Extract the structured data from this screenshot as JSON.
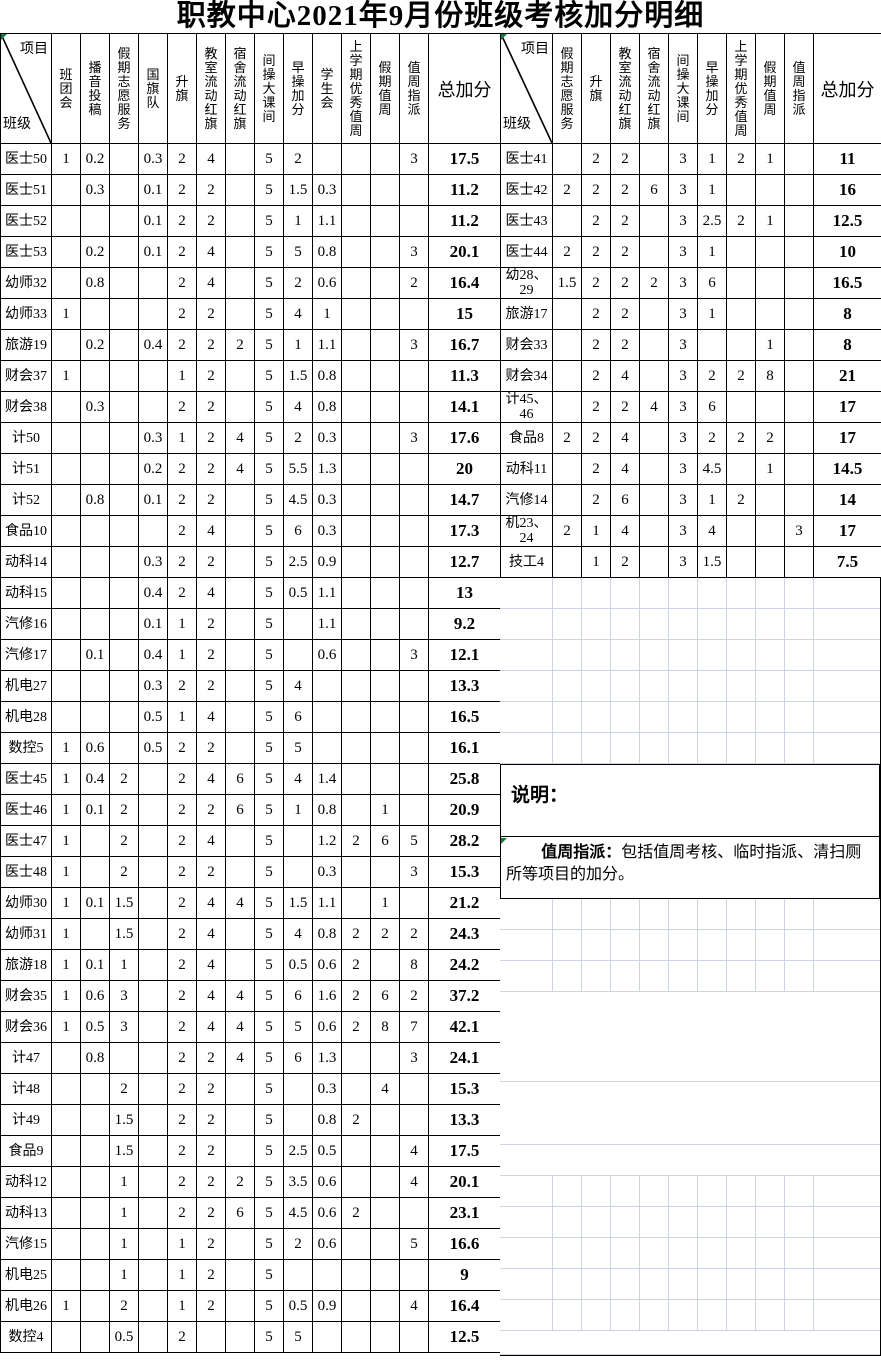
{
  "title": "职教中心2021年9月份班级考核加分明细",
  "notes": {
    "heading": "说明：",
    "term": "值周指派：",
    "text": "包括值周考核、临时指派、清扫厕所等项目的加分。"
  },
  "colors": {
    "border": "#000000",
    "gridline": "#ccd3e4",
    "marker_green": "#0f7b3a"
  },
  "left_table": {
    "corner": {
      "top": "项目",
      "bottom": "班级"
    },
    "columns": [
      "班团会",
      "播音投稿",
      "假期志愿服务",
      "国旗队",
      "升旗",
      "教室流动红旗",
      "宿舍流动红旗",
      "间操大课间",
      "早操加分",
      "学生会",
      "上学期优秀值周",
      "假期值周",
      "值周指派"
    ],
    "total_label": "总加分",
    "rows": [
      {
        "label": "医士50",
        "values": [
          "1",
          "0.2",
          "",
          "0.3",
          "2",
          "4",
          "",
          "5",
          "2",
          "",
          "",
          "",
          "3"
        ],
        "total": "17.5"
      },
      {
        "label": "医士51",
        "values": [
          "",
          "0.3",
          "",
          "0.1",
          "2",
          "2",
          "",
          "5",
          "1.5",
          "0.3",
          "",
          "",
          ""
        ],
        "total": "11.2"
      },
      {
        "label": "医士52",
        "values": [
          "",
          "",
          "",
          "0.1",
          "2",
          "2",
          "",
          "5",
          "1",
          "1.1",
          "",
          "",
          ""
        ],
        "total": "11.2"
      },
      {
        "label": "医士53",
        "values": [
          "",
          "0.2",
          "",
          "0.1",
          "2",
          "4",
          "",
          "5",
          "5",
          "0.8",
          "",
          "",
          "3"
        ],
        "total": "20.1"
      },
      {
        "label": "幼师32",
        "values": [
          "",
          "0.8",
          "",
          "",
          "2",
          "4",
          "",
          "5",
          "2",
          "0.6",
          "",
          "",
          "2"
        ],
        "total": "16.4"
      },
      {
        "label": "幼师33",
        "values": [
          "1",
          "",
          "",
          "",
          "2",
          "2",
          "",
          "5",
          "4",
          "1",
          "",
          "",
          ""
        ],
        "total": "15"
      },
      {
        "label": "旅游19",
        "values": [
          "",
          "0.2",
          "",
          "0.4",
          "2",
          "2",
          "2",
          "5",
          "1",
          "1.1",
          "",
          "",
          "3"
        ],
        "total": "16.7"
      },
      {
        "label": "财会37",
        "values": [
          "1",
          "",
          "",
          "",
          "1",
          "2",
          "",
          "5",
          "1.5",
          "0.8",
          "",
          "",
          ""
        ],
        "total": "11.3"
      },
      {
        "label": "财会38",
        "values": [
          "",
          "0.3",
          "",
          "",
          "2",
          "2",
          "",
          "5",
          "4",
          "0.8",
          "",
          "",
          ""
        ],
        "total": "14.1"
      },
      {
        "label": "计50",
        "values": [
          "",
          "",
          "",
          "0.3",
          "1",
          "2",
          "4",
          "5",
          "2",
          "0.3",
          "",
          "",
          "3"
        ],
        "total": "17.6"
      },
      {
        "label": "计51",
        "values": [
          "",
          "",
          "",
          "0.2",
          "2",
          "2",
          "4",
          "5",
          "5.5",
          "1.3",
          "",
          "",
          ""
        ],
        "total": "20"
      },
      {
        "label": "计52",
        "values": [
          "",
          "0.8",
          "",
          "0.1",
          "2",
          "2",
          "",
          "5",
          "4.5",
          "0.3",
          "",
          "",
          ""
        ],
        "total": "14.7"
      },
      {
        "label": "食品10",
        "values": [
          "",
          "",
          "",
          "",
          "2",
          "4",
          "",
          "5",
          "6",
          "0.3",
          "",
          "",
          ""
        ],
        "total": "17.3"
      },
      {
        "label": "动科14",
        "values": [
          "",
          "",
          "",
          "0.3",
          "2",
          "2",
          "",
          "5",
          "2.5",
          "0.9",
          "",
          "",
          ""
        ],
        "total": "12.7"
      },
      {
        "label": "动科15",
        "values": [
          "",
          "",
          "",
          "0.4",
          "2",
          "4",
          "",
          "5",
          "0.5",
          "1.1",
          "",
          "",
          ""
        ],
        "total": "13"
      },
      {
        "label": "汽修16",
        "values": [
          "",
          "",
          "",
          "0.1",
          "1",
          "2",
          "",
          "5",
          "",
          "1.1",
          "",
          "",
          ""
        ],
        "total": "9.2"
      },
      {
        "label": "汽修17",
        "values": [
          "",
          "0.1",
          "",
          "0.4",
          "1",
          "2",
          "",
          "5",
          "",
          "0.6",
          "",
          "",
          "3"
        ],
        "total": "12.1"
      },
      {
        "label": "机电27",
        "values": [
          "",
          "",
          "",
          "0.3",
          "2",
          "2",
          "",
          "5",
          "4",
          "",
          "",
          "",
          ""
        ],
        "total": "13.3"
      },
      {
        "label": "机电28",
        "values": [
          "",
          "",
          "",
          "0.5",
          "1",
          "4",
          "",
          "5",
          "6",
          "",
          "",
          "",
          ""
        ],
        "total": "16.5"
      },
      {
        "label": "数控5",
        "values": [
          "1",
          "0.6",
          "",
          "0.5",
          "2",
          "2",
          "",
          "5",
          "5",
          "",
          "",
          "",
          ""
        ],
        "total": "16.1"
      },
      {
        "label": "医士45",
        "values": [
          "1",
          "0.4",
          "2",
          "",
          "2",
          "4",
          "6",
          "5",
          "4",
          "1.4",
          "",
          "",
          ""
        ],
        "total": "25.8"
      },
      {
        "label": "医士46",
        "values": [
          "1",
          "0.1",
          "2",
          "",
          "2",
          "2",
          "6",
          "5",
          "1",
          "0.8",
          "",
          "1",
          ""
        ],
        "total": "20.9"
      },
      {
        "label": "医士47",
        "values": [
          "1",
          "",
          "2",
          "",
          "2",
          "4",
          "",
          "5",
          "",
          "1.2",
          "2",
          "6",
          "5"
        ],
        "total": "28.2"
      },
      {
        "label": "医士48",
        "values": [
          "1",
          "",
          "2",
          "",
          "2",
          "2",
          "",
          "5",
          "",
          "0.3",
          "",
          "",
          "3"
        ],
        "total": "15.3"
      },
      {
        "label": "幼师30",
        "values": [
          "1",
          "0.1",
          "1.5",
          "",
          "2",
          "4",
          "4",
          "5",
          "1.5",
          "1.1",
          "",
          "1",
          ""
        ],
        "total": "21.2"
      },
      {
        "label": "幼师31",
        "values": [
          "1",
          "",
          "1.5",
          "",
          "2",
          "4",
          "",
          "5",
          "4",
          "0.8",
          "2",
          "2",
          "2"
        ],
        "total": "24.3"
      },
      {
        "label": "旅游18",
        "values": [
          "1",
          "0.1",
          "1",
          "",
          "2",
          "4",
          "",
          "5",
          "0.5",
          "0.6",
          "2",
          "",
          "8"
        ],
        "total": "24.2"
      },
      {
        "label": "财会35",
        "values": [
          "1",
          "0.6",
          "3",
          "",
          "2",
          "4",
          "4",
          "5",
          "6",
          "1.6",
          "2",
          "6",
          "2"
        ],
        "total": "37.2"
      },
      {
        "label": "财会36",
        "values": [
          "1",
          "0.5",
          "3",
          "",
          "2",
          "4",
          "4",
          "5",
          "5",
          "0.6",
          "2",
          "8",
          "7"
        ],
        "total": "42.1"
      },
      {
        "label": "计47",
        "values": [
          "",
          "0.8",
          "",
          "",
          "2",
          "2",
          "4",
          "5",
          "6",
          "1.3",
          "",
          "",
          "3"
        ],
        "total": "24.1"
      },
      {
        "label": "计48",
        "values": [
          "",
          "",
          "2",
          "",
          "2",
          "2",
          "",
          "5",
          "",
          "0.3",
          "",
          "4",
          ""
        ],
        "total": "15.3"
      },
      {
        "label": "计49",
        "values": [
          "",
          "",
          "1.5",
          "",
          "2",
          "2",
          "",
          "5",
          "",
          "0.8",
          "2",
          "",
          ""
        ],
        "total": "13.3"
      },
      {
        "label": "食品9",
        "values": [
          "",
          "",
          "1.5",
          "",
          "2",
          "2",
          "",
          "5",
          "2.5",
          "0.5",
          "",
          "",
          "4"
        ],
        "total": "17.5"
      },
      {
        "label": "动科12",
        "values": [
          "",
          "",
          "1",
          "",
          "2",
          "2",
          "2",
          "5",
          "3.5",
          "0.6",
          "",
          "",
          "4"
        ],
        "total": "20.1"
      },
      {
        "label": "动科13",
        "values": [
          "",
          "",
          "1",
          "",
          "2",
          "2",
          "6",
          "5",
          "4.5",
          "0.6",
          "2",
          "",
          ""
        ],
        "total": "23.1"
      },
      {
        "label": "汽修15",
        "values": [
          "",
          "",
          "1",
          "",
          "1",
          "2",
          "",
          "5",
          "2",
          "0.6",
          "",
          "",
          "5"
        ],
        "total": "16.6"
      },
      {
        "label": "机电25",
        "values": [
          "",
          "",
          "1",
          "",
          "1",
          "2",
          "",
          "5",
          "",
          "",
          "",
          "",
          ""
        ],
        "total": "9"
      },
      {
        "label": "机电26",
        "values": [
          "1",
          "",
          "2",
          "",
          "1",
          "2",
          "",
          "5",
          "0.5",
          "0.9",
          "",
          "",
          "4"
        ],
        "total": "16.4"
      },
      {
        "label": "数控4",
        "values": [
          "",
          "",
          "0.5",
          "",
          "2",
          "",
          "",
          "5",
          "5",
          "",
          "",
          "",
          ""
        ],
        "total": "12.5"
      }
    ]
  },
  "right_table": {
    "corner": {
      "top": "项目",
      "bottom": "班级"
    },
    "columns": [
      "假期志愿服务",
      "升旗",
      "教室流动红旗",
      "宿舍流动红旗",
      "间操大课间",
      "早操加分",
      "上学期优秀值周",
      "假期值周",
      "值周指派"
    ],
    "total_label": "总加分",
    "rows": [
      {
        "label": "医士41",
        "values": [
          "",
          "2",
          "2",
          "",
          "3",
          "1",
          "2",
          "1",
          ""
        ],
        "total": "11"
      },
      {
        "label": "医士42",
        "values": [
          "2",
          "2",
          "2",
          "6",
          "3",
          "1",
          "",
          "",
          ""
        ],
        "total": "16"
      },
      {
        "label": "医士43",
        "values": [
          "",
          "2",
          "2",
          "",
          "3",
          "2.5",
          "2",
          "1",
          ""
        ],
        "total": "12.5"
      },
      {
        "label": "医士44",
        "values": [
          "2",
          "2",
          "2",
          "",
          "3",
          "1",
          "",
          "",
          ""
        ],
        "total": "10"
      },
      {
        "label": "幼28、29",
        "values": [
          "1.5",
          "2",
          "2",
          "2",
          "3",
          "6",
          "",
          "",
          ""
        ],
        "total": "16.5"
      },
      {
        "label": "旅游17",
        "values": [
          "",
          "2",
          "2",
          "",
          "3",
          "1",
          "",
          "",
          ""
        ],
        "total": "8"
      },
      {
        "label": "财会33",
        "values": [
          "",
          "2",
          "2",
          "",
          "3",
          "",
          "",
          "1",
          ""
        ],
        "total": "8"
      },
      {
        "label": "财会34",
        "values": [
          "",
          "2",
          "4",
          "",
          "3",
          "2",
          "2",
          "8",
          ""
        ],
        "total": "21"
      },
      {
        "label": "计45、46",
        "values": [
          "",
          "2",
          "2",
          "4",
          "3",
          "6",
          "",
          "",
          ""
        ],
        "total": "17"
      },
      {
        "label": "食品8",
        "values": [
          "2",
          "2",
          "4",
          "",
          "3",
          "2",
          "2",
          "2",
          ""
        ],
        "total": "17"
      },
      {
        "label": "动科11",
        "values": [
          "",
          "2",
          "4",
          "",
          "3",
          "4.5",
          "",
          "1",
          ""
        ],
        "total": "14.5"
      },
      {
        "label": "汽修14",
        "values": [
          "",
          "2",
          "6",
          "",
          "3",
          "1",
          "2",
          "",
          ""
        ],
        "total": "14"
      },
      {
        "label": "机23、24",
        "values": [
          "2",
          "1",
          "4",
          "",
          "3",
          "4",
          "",
          "",
          "3"
        ],
        "total": "17"
      },
      {
        "label": "技工4",
        "values": [
          "",
          "1",
          "2",
          "",
          "3",
          "1.5",
          "",
          "",
          ""
        ],
        "total": "7.5"
      }
    ]
  }
}
